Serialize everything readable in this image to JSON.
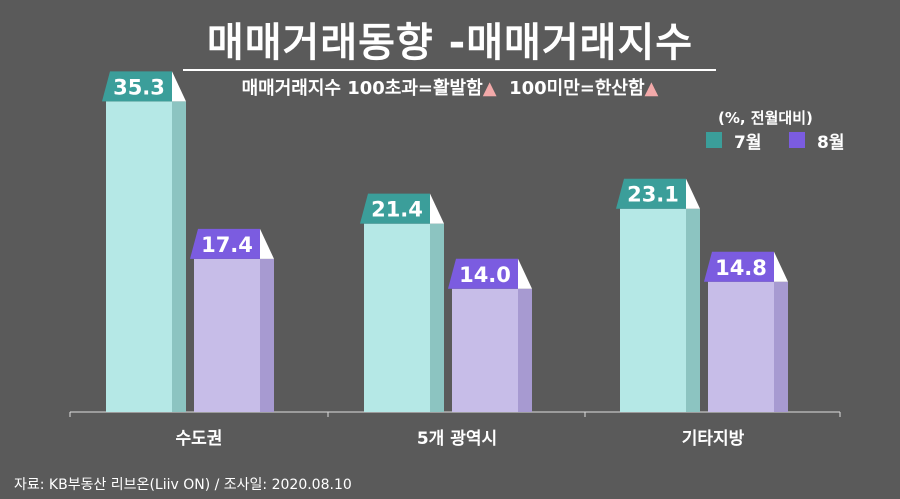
{
  "title": "매매거래동향 -매매거래지수",
  "subtitle": {
    "text": "매매거래지수 100초과=활발함",
    "triangle": "▲",
    "text2": "100미만=한산함"
  },
  "unit_note": "(%, 전월대비)",
  "source": "자료: KB부동산 리브온(Liiv ON) / 조사일: 2020.08.10",
  "colors": {
    "background": "#5a5a5a",
    "july_front": "#b5e8e6",
    "july_side": "#8cc4c1",
    "july_label": "#3b9e9a",
    "aug_front": "#c7bde8",
    "aug_side": "#a79ad1",
    "aug_label": "#7b5ce0",
    "label_text": "#ffffff",
    "axis": "#dddddd"
  },
  "chart_data": {
    "type": "bar",
    "categories": [
      "수도권",
      "5개 광역시",
      "기타지방"
    ],
    "series": [
      {
        "name": "7월",
        "values": [
          35.3,
          21.4,
          23.1
        ]
      },
      {
        "name": "8월",
        "values": [
          17.4,
          14.0,
          14.8
        ]
      }
    ],
    "value_labels": [
      [
        "35.3",
        "21.4",
        "23.1"
      ],
      [
        "17.4",
        "14.0",
        "14.8"
      ]
    ],
    "ylim": [
      0,
      40
    ],
    "grid": false,
    "legend_position": "top-right"
  }
}
